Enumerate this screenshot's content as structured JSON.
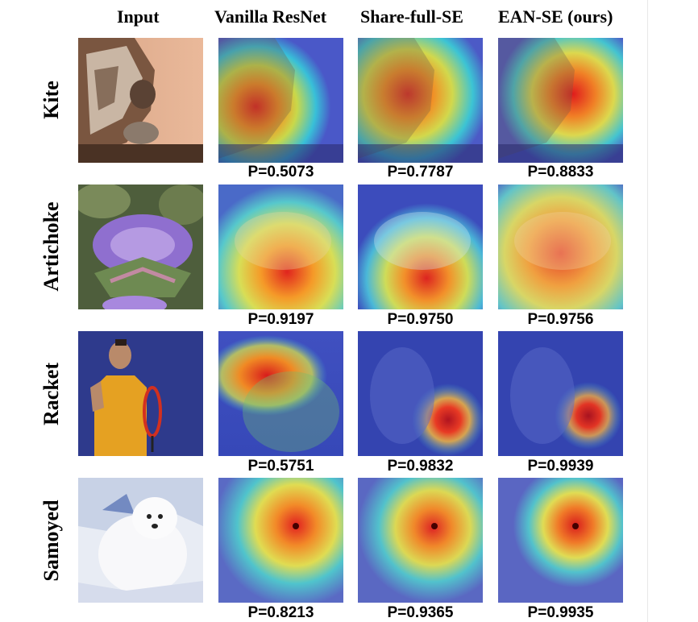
{
  "columns": [
    "Input",
    "Vanilla ResNet",
    "Share-full-SE",
    "EAN-SE (ours)"
  ],
  "rows": [
    {
      "label": "Kite",
      "probs": [
        "P=0.5073",
        "P=0.7787",
        "P=0.8833"
      ]
    },
    {
      "label": "Artichoke",
      "probs": [
        "P=0.9197",
        "P=0.9750",
        "P=0.9756"
      ]
    },
    {
      "label": "Racket",
      "probs": [
        "P=0.5751",
        "P=0.9832",
        "P=0.9939"
      ]
    },
    {
      "label": "Samoyed",
      "probs": [
        "P=0.8213",
        "P=0.9365",
        "P=0.9935"
      ]
    }
  ]
}
